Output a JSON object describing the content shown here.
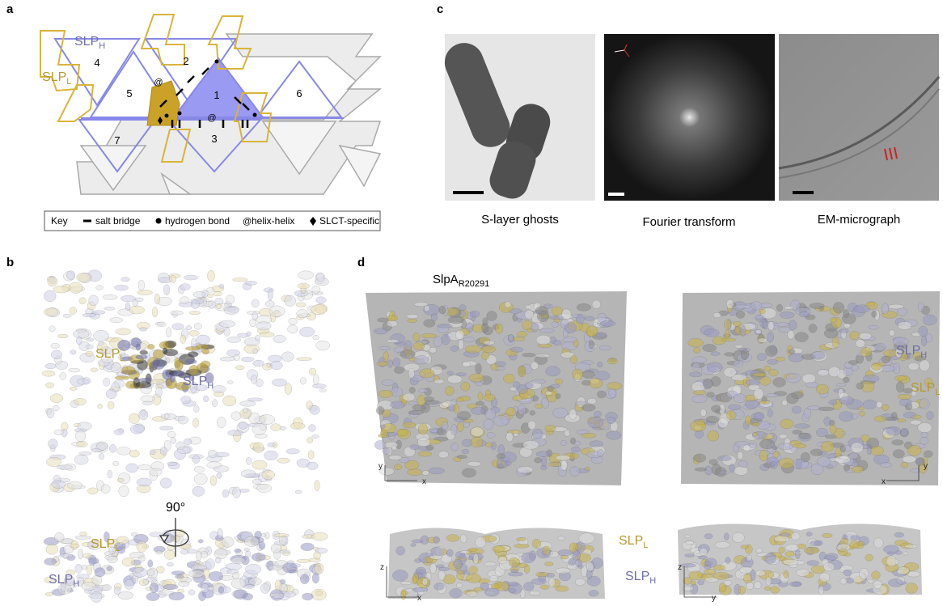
{
  "panel_a": {
    "label": "a",
    "slp_h": {
      "main": "SLP",
      "sub": "H"
    },
    "slp_l": {
      "main": "SLP",
      "sub": "L"
    },
    "triangles": [
      "1",
      "2",
      "3",
      "4",
      "5",
      "6",
      "7"
    ],
    "key": {
      "title": "Key",
      "items": [
        "salt bridge",
        "hydrogen bond",
        "helix-helix",
        "SLCT-specific"
      ]
    }
  },
  "panel_b": {
    "label": "b",
    "top_slp_l": {
      "main": "SLP",
      "sub": "L"
    },
    "top_slp_h": {
      "main": "SLP",
      "sub": "H"
    },
    "rotation": "90°",
    "side_slp_l": {
      "main": "SLP",
      "sub": "L"
    },
    "side_slp_h": {
      "main": "SLP",
      "sub": "H"
    }
  },
  "panel_c": {
    "label": "c",
    "captions": [
      "S-layer ghosts",
      "Fourier transform",
      "EM-micrograph"
    ]
  },
  "panel_d": {
    "label": "d",
    "title": {
      "main": "SlpA",
      "sub": "R20291"
    },
    "right_slp_h": {
      "main": "SLP",
      "sub": "H"
    },
    "right_slp_l": {
      "main": "SLP",
      "sub": "L"
    },
    "side_slp_l": {
      "main": "SLP",
      "sub": "L"
    },
    "side_slp_h": {
      "main": "SLP",
      "sub": "H"
    },
    "axes": [
      [
        "y",
        "x"
      ],
      [
        "y",
        "x"
      ],
      [
        "z",
        "x"
      ],
      [
        "z",
        "y"
      ]
    ]
  }
}
